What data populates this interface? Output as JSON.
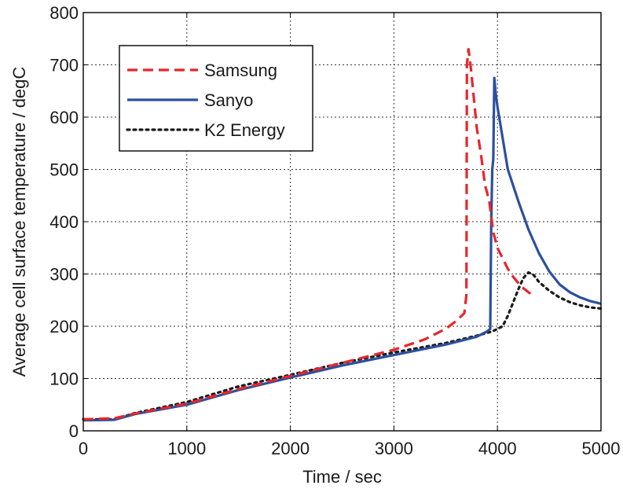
{
  "chart_data": {
    "type": "line",
    "title": "",
    "xlabel": "Time / sec",
    "ylabel": "Average cell surface temperature / degC",
    "xlim": [
      0,
      5000
    ],
    "ylim": [
      0,
      800
    ],
    "xticks": [
      0,
      1000,
      2000,
      3000,
      4000,
      5000
    ],
    "yticks": [
      0,
      100,
      200,
      300,
      400,
      500,
      600,
      700,
      800
    ],
    "xtick_labels": [
      "0",
      "1000",
      "2000",
      "3000",
      "4000",
      "5000"
    ],
    "ytick_labels": [
      "0",
      "100",
      "200",
      "300",
      "400",
      "500",
      "600",
      "700",
      "800"
    ],
    "grid": true,
    "legend_position": "top-left",
    "series": [
      {
        "name": "Samsung",
        "color": "#e8262b",
        "style": "dashed",
        "x": [
          0,
          300,
          500,
          1000,
          1500,
          2000,
          2500,
          3000,
          3300,
          3500,
          3600,
          3680,
          3700,
          3705,
          3720,
          3740,
          3760,
          3780,
          3800,
          3840,
          3880,
          3920,
          3960,
          4000,
          4050,
          4100,
          4150,
          4200,
          4250,
          4300,
          4350
        ],
        "y": [
          22,
          24,
          33,
          52,
          80,
          105,
          130,
          155,
          175,
          195,
          210,
          225,
          260,
          700,
          730,
          700,
          660,
          620,
          580,
          530,
          470,
          440,
          380,
          350,
          330,
          310,
          295,
          283,
          273,
          265,
          258
        ]
      },
      {
        "name": "Sanyo",
        "color": "#2d4f9e",
        "style": "solid",
        "x": [
          0,
          300,
          500,
          1000,
          1500,
          2000,
          2500,
          3000,
          3500,
          3800,
          3900,
          3930,
          3940,
          3950,
          3960,
          3970,
          3980,
          4000,
          4050,
          4100,
          4200,
          4300,
          4400,
          4500,
          4600,
          4700,
          4800,
          4900,
          5000
        ],
        "y": [
          20,
          21,
          32,
          50,
          78,
          102,
          125,
          145,
          165,
          180,
          190,
          195,
          400,
          500,
          520,
          675,
          650,
          620,
          560,
          500,
          440,
          385,
          340,
          305,
          280,
          265,
          255,
          248,
          243
        ]
      },
      {
        "name": "K2 Energy",
        "color": "#1a1a1a",
        "style": "dotted",
        "x": [
          0,
          300,
          500,
          1000,
          1500,
          2000,
          2500,
          3000,
          3500,
          3800,
          3950,
          4000,
          4050,
          4100,
          4150,
          4200,
          4250,
          4300,
          4350,
          4400,
          4500,
          4600,
          4700,
          4800,
          4900,
          5000
        ],
        "y": [
          22,
          22,
          34,
          55,
          85,
          107,
          130,
          150,
          168,
          182,
          190,
          195,
          200,
          220,
          245,
          270,
          292,
          303,
          298,
          285,
          268,
          255,
          246,
          240,
          236,
          234
        ]
      }
    ]
  }
}
